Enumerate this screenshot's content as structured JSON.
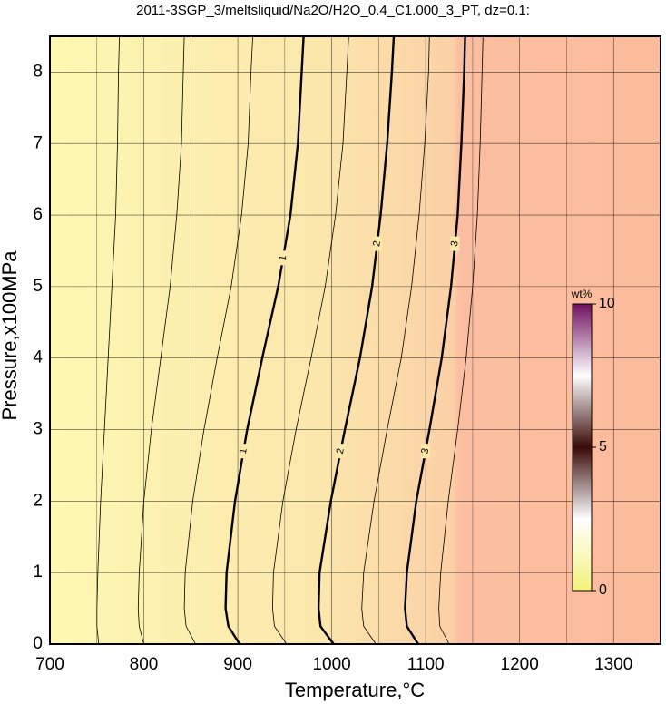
{
  "chart_data": {
    "type": "contour",
    "title": "2011-3SGP_3/meltsliquid/Na2O/H2O_0.4_C1.000_3_PT, dz=0.1:",
    "x_label": "Temperature,°C",
    "y_label": "Pressure,x100MPa",
    "xlim": [
      700,
      1350
    ],
    "ylim": [
      0,
      8.5
    ],
    "xticks": [
      700,
      800,
      900,
      1000,
      1100,
      1200,
      1300
    ],
    "yticks": [
      0,
      1,
      2,
      3,
      4,
      5,
      6,
      7,
      8
    ],
    "grid": true,
    "pressures": [
      0,
      0.25,
      0.5,
      1,
      2,
      3,
      4,
      5,
      6,
      7,
      8,
      8.5
    ],
    "contours": [
      {
        "level": 0.25,
        "values": [
          752,
          750,
          750,
          751,
          754,
          758,
          762,
          766,
          770,
          772,
          773,
          774
        ]
      },
      {
        "level": 0.5,
        "values": [
          800,
          795,
          794,
          795,
          800,
          808,
          818,
          828,
          835,
          840,
          842,
          843
        ]
      },
      {
        "level": 0.75,
        "values": [
          855,
          845,
          843,
          844,
          852,
          864,
          878,
          893,
          904,
          911,
          914,
          916
        ]
      },
      {
        "level": 1,
        "values": [
          902,
          890,
          887,
          888,
          897,
          910,
          926,
          943,
          956,
          964,
          968,
          970
        ]
      },
      {
        "level": 1.5,
        "values": [
          952,
          939,
          937,
          938,
          948,
          962,
          978,
          993,
          1004,
          1012,
          1016,
          1018
        ]
      },
      {
        "level": 2,
        "values": [
          1002,
          988,
          986,
          987,
          999,
          1014,
          1030,
          1043,
          1052,
          1059,
          1064,
          1066
        ]
      },
      {
        "level": 2.5,
        "values": [
          1047,
          1034,
          1032,
          1034,
          1045,
          1059,
          1074,
          1085,
          1093,
          1099,
          1103,
          1104
        ]
      },
      {
        "level": 3,
        "values": [
          1092,
          1080,
          1078,
          1080,
          1090,
          1104,
          1117,
          1127,
          1134,
          1138,
          1141,
          1142
        ]
      },
      {
        "level": 3.5,
        "values": [
          1125,
          1115,
          1114,
          1116,
          1124,
          1134,
          1143,
          1150,
          1155,
          1158,
          1160,
          1161
        ]
      }
    ],
    "contour_labels": [
      {
        "level": 1,
        "at": [
          2.7,
          5.4
        ]
      },
      {
        "level": 2,
        "at": [
          2.7,
          5.6
        ]
      },
      {
        "level": 3,
        "at": [
          2.7,
          5.6
        ]
      }
    ],
    "colorbar": {
      "label": "wt%",
      "lim": [
        0,
        10
      ],
      "ticks": [
        0,
        5,
        10
      ],
      "colors": [
        "#f4f27a",
        "#ffffff",
        "#3a0a08",
        "#ffffff",
        "#701060"
      ]
    }
  }
}
